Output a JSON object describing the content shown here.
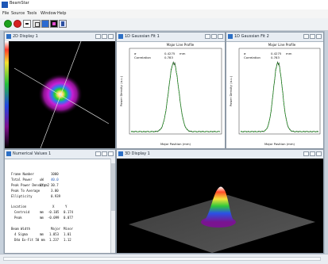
{
  "app": {
    "title": "BeamStar"
  },
  "menu": [
    "File",
    "Source",
    "Tools",
    "Window",
    "Help"
  ],
  "colors": {
    "accent": "#1d57b6",
    "fit_curve": "#22a022",
    "data_curve": "#111111"
  },
  "windows": {
    "display2d": {
      "title": "2D Display 1"
    },
    "gauss1": {
      "title": "1D Gaussian Fit 1",
      "plot_title": "Major Line Profile",
      "stats": {
        "sigma_label": "σ",
        "sigma_value": "0.4275",
        "sigma_unit": "mm",
        "corr_label": "Correlation",
        "corr_value": "0.783"
      },
      "xlabel": "Major Position (mm)",
      "ylabel": "Power Density (a.u.)"
    },
    "gauss2": {
      "title": "1D Gaussian Fit 2",
      "plot_title": "Major Line Profile",
      "stats": {
        "sigma_label": "σ",
        "sigma_value": "0.4275",
        "sigma_unit": "mm",
        "corr_label": "Correlation",
        "corr_value": "0.783"
      },
      "xlabel": "Major Position (mm)",
      "ylabel": "Power Density (a.u.)"
    },
    "numerical": {
      "title": "Numerical Values 1",
      "rows": [
        {
          "k": "Frame Number",
          "u": "",
          "v": "1000"
        },
        {
          "k": "Total Power",
          "u": "uW",
          "v": "40.0"
        },
        {
          "k": "Peak Power Density",
          "u": "W/cm2",
          "v": "30.7"
        },
        {
          "k": "Peak To Average",
          "u": "",
          "v": "3.00"
        },
        {
          "k": "Ellipticity",
          "u": "",
          "v": "0.939"
        }
      ],
      "location": {
        "header": "Location",
        "cols": [
          "X",
          "Y"
        ],
        "rows": [
          {
            "k": "Centroid",
            "u": "mm",
            "a": "-0.105",
            "b": "0.174"
          },
          {
            "k": "Peak",
            "u": "mm",
            "a": "-0.099",
            "b": "0.077"
          }
        ]
      },
      "beam": {
        "header": "Beam Width",
        "cols": [
          "Major",
          "Minor"
        ],
        "rows": [
          {
            "k": "4 Sigma",
            "u": "mm",
            "a": "1.053",
            "b": "1.01"
          },
          {
            "k": "D4σ Ex-Fit 50 mm",
            "u": "",
            "a": "1.237",
            "b": "1.12"
          }
        ]
      }
    },
    "display3d": {
      "title": "3D Display 1"
    }
  }
}
